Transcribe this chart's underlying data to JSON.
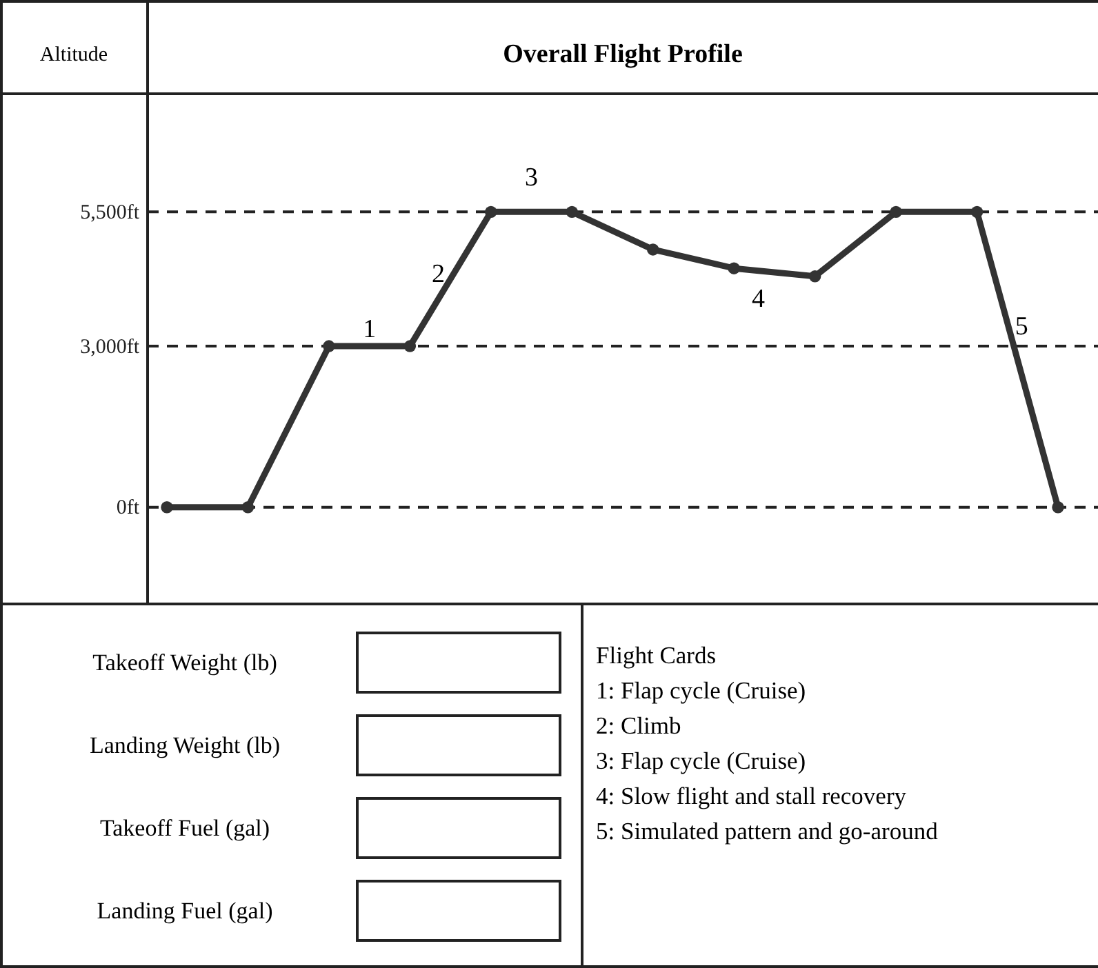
{
  "chart_data": {
    "type": "line",
    "title": "Overall Flight Profile",
    "ylabel": "Altitude",
    "categories": [
      null,
      null,
      null,
      null,
      null,
      null,
      null,
      null,
      null,
      null,
      null,
      null
    ],
    "ylim": [
      -1800,
      7700
    ],
    "yticks": [
      {
        "value": 0,
        "label": "0ft"
      },
      {
        "value": 3000,
        "label": "3,000ft"
      },
      {
        "value": 5500,
        "label": "5,500ft"
      }
    ],
    "tick_labels": "y",
    "grid": "y",
    "marker": "circle",
    "line_style": "solid",
    "series": [
      {
        "color": "#333333",
        "values": [
          0,
          0,
          3000,
          3000,
          5500,
          5500,
          4800,
          4450,
          4300,
          5500,
          5500,
          0
        ]
      }
    ],
    "annotations": [
      "1",
      "2",
      "3",
      "4",
      "5",
      "Takeoff Weight (lb)",
      "Landing Weight (lb)",
      "Takeoff Fuel (gal)",
      "Landing Fuel (gal)",
      "Flight Cards",
      "1: Flap cycle (Cruise)",
      "2: Climb",
      "3: Flap cycle (Cruise)",
      "4: Slow flight and stall recovery",
      "5: Simulated pattern and go-around"
    ]
  }
}
